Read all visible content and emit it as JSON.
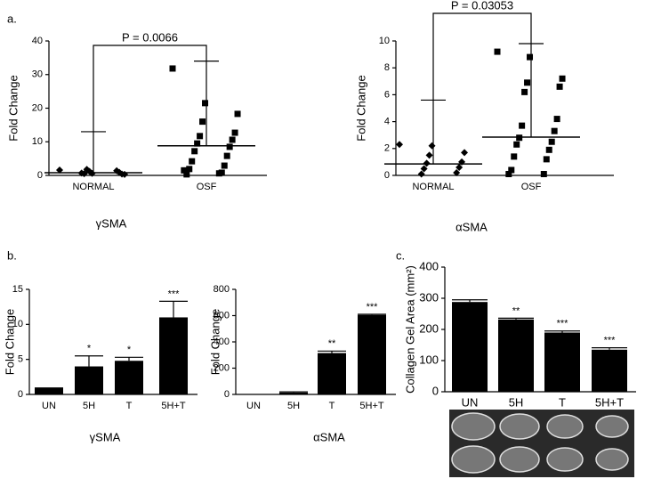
{
  "chart_data": [
    {
      "type": "dot",
      "panel_label": "a.",
      "ylabel": "Fold Change",
      "title": "γSMA",
      "categories": [
        "NORMAL",
        "OSF"
      ],
      "points": [
        [
          1.6,
          0.6,
          0.3,
          1.2,
          0.4,
          1.8,
          0.9,
          0.5,
          1.4,
          0.7
        ],
        [
          31.8,
          21.5,
          18.3,
          16,
          12.7,
          11.7,
          10.6,
          9.5,
          8.5,
          7.2,
          5.8,
          4.2,
          2.9,
          1.9,
          0.8,
          0.3,
          0.6,
          1.5
        ]
      ],
      "means": [
        0.8,
        8.8
      ],
      "errors": [
        12.2,
        25.2
      ],
      "markers": [
        "diamond",
        "square"
      ],
      "color": "#000000",
      "p_value_label": "P = 0.0066",
      "ylim": [
        0,
        40
      ],
      "yticks": [
        0,
        10,
        20,
        30,
        40
      ]
    },
    {
      "type": "dot",
      "ylabel": "Fold Change",
      "title": "αSMA",
      "categories": [
        "NORMAL",
        "OSF"
      ],
      "points": [
        [
          2.3,
          2.2,
          1.7,
          1.5,
          1.0,
          0.9,
          0.6,
          0.5,
          0.2,
          0.1
        ],
        [
          9.2,
          8.8,
          7.2,
          6.9,
          6.6,
          6.2,
          4.2,
          3.7,
          3.3,
          2.8,
          2.5,
          2.3,
          1.9,
          1.4,
          1.2,
          0.4,
          0.1,
          0.1
        ]
      ],
      "means": [
        0.85,
        2.85
      ],
      "errors": [
        4.75,
        6.95
      ],
      "markers": [
        "diamond",
        "square"
      ],
      "color": "#000000",
      "p_value_label": "P = 0.03053",
      "ylim": [
        0,
        10
      ],
      "yticks": [
        0,
        2,
        4,
        6,
        8,
        10
      ]
    },
    {
      "type": "bar",
      "panel_label": "b.",
      "ylabel": "Fold Change",
      "title": "γSMA",
      "categories": [
        "UN",
        "5H",
        "T",
        "5H+T"
      ],
      "values": [
        1,
        4,
        4.8,
        11
      ],
      "errors": [
        null,
        1.5,
        0.5,
        2.3
      ],
      "annotations": [
        null,
        "*",
        "*",
        "***"
      ],
      "color": "#000000",
      "ylim": [
        0,
        15
      ],
      "yticks": [
        0,
        5,
        10,
        15
      ]
    },
    {
      "type": "bar",
      "ylabel": "Fold Change",
      "title": "αSMA",
      "categories": [
        "UN",
        "5H",
        "T",
        "5H+T"
      ],
      "values": [
        1,
        15,
        315,
        605
      ],
      "errors": [
        null,
        5,
        15,
        5
      ],
      "annotations": [
        null,
        null,
        "**",
        "***"
      ],
      "color": "#000000",
      "ylim": [
        0,
        800
      ],
      "yticks": [
        0,
        200,
        400,
        600,
        800
      ]
    },
    {
      "type": "bar",
      "panel_label": "c.",
      "ylabel": "Collagen Gel Area (mm²)",
      "categories": [
        "UN",
        "5H",
        "T",
        "5H+T"
      ],
      "values": [
        288,
        232,
        190,
        135
      ],
      "errors": [
        7,
        4,
        5,
        6
      ],
      "annotations": [
        null,
        "**",
        "***",
        "***"
      ],
      "color": "#000000",
      "ylim": [
        0,
        400
      ],
      "yticks": [
        0,
        100,
        200,
        300,
        400
      ]
    }
  ]
}
